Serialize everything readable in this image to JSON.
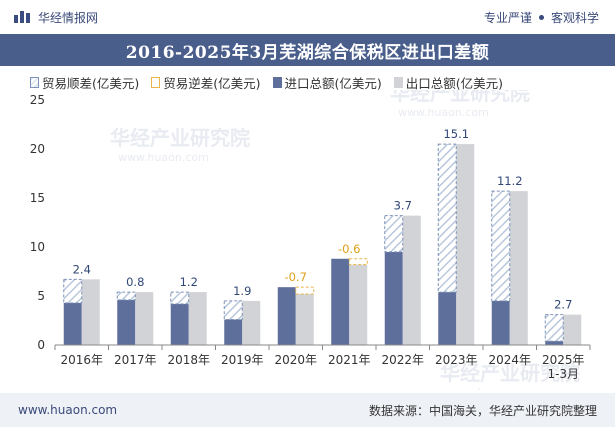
{
  "header": {
    "brand": "华经情报网",
    "slogan_left": "专业严谨",
    "slogan_right": "客观科学"
  },
  "title": "2016-2025年3月芜湖综合保税区进出口差额",
  "legend": [
    {
      "key": "surplus",
      "label": "贸易顺差(亿美元)"
    },
    {
      "key": "deficit",
      "label": "贸易逆差(亿美元)"
    },
    {
      "key": "import",
      "label": "进口总额(亿美元)"
    },
    {
      "key": "export",
      "label": "出口总额(亿美元)"
    }
  ],
  "colors": {
    "import": "#5e6f9c",
    "export": "#d2d3d6",
    "surplus_border": "#7d93b8",
    "deficit_border": "#e8b54a",
    "surplus_label": "#2f4677",
    "deficit_label": "#e0a01a",
    "title_bg": "#4a5e8c"
  },
  "watermark": "华经产业研究院",
  "watermark_url": "www.huaon.com",
  "chart_data": {
    "type": "bar",
    "categories": [
      "2016年",
      "2017年",
      "2018年",
      "2019年",
      "2020年",
      "2021年",
      "2022年",
      "2023年",
      "2024年",
      "2025年\n1-3月"
    ],
    "series": [
      {
        "name": "进口总额(亿美元)",
        "values": [
          4.3,
          4.6,
          4.2,
          2.6,
          5.9,
          8.8,
          9.5,
          5.4,
          4.5,
          0.4
        ]
      },
      {
        "name": "出口总额(亿美元)",
        "values": [
          6.7,
          5.4,
          5.4,
          4.5,
          5.2,
          8.2,
          13.2,
          20.5,
          15.7,
          3.1
        ]
      },
      {
        "name": "贸易差额(亿美元)",
        "values": [
          2.4,
          0.8,
          1.2,
          1.9,
          -0.7,
          -0.6,
          3.7,
          15.1,
          11.2,
          2.7
        ]
      }
    ],
    "ylim": [
      0,
      25
    ],
    "yticks": [
      0,
      5,
      10,
      15,
      20,
      25
    ],
    "grid": false,
    "legend_position": "top"
  },
  "footer": {
    "url": "www.huaon.com",
    "source": "数据来源：中国海关，华经产业研究院整理"
  }
}
